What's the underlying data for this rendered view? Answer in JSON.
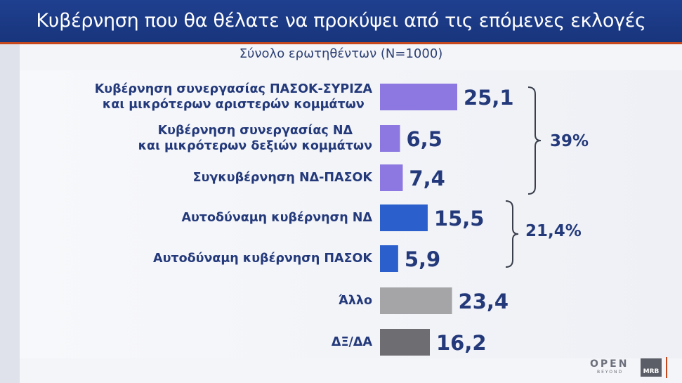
{
  "header": {
    "title": "Κυβέρνηση που θα θέλατε να προκύψει από τις επόμενες εκλογές",
    "subtitle": "Σύνολο ερωτηθέντων (N=1000)"
  },
  "chart_data": {
    "type": "bar",
    "orientation": "horizontal",
    "categories": [
      "Κυβέρνηση συνεργασίας ΠΑΣΟΚ-ΣΥΡΙΖΑ\nκαι μικρότερων αριστερών κομμάτων",
      "Κυβέρνηση συνεργασίας ΝΔ\nκαι μικρότερων δεξιών κομμάτων",
      "Συγκυβέρνηση ΝΔ-ΠΑΣΟΚ",
      "Αυτοδύναμη κυβέρνηση ΝΔ",
      "Αυτοδύναμη κυβέρνηση ΠΑΣΟΚ",
      "Άλλο",
      "ΔΞ/ΔΑ"
    ],
    "values": [
      25.1,
      6.5,
      7.4,
      15.5,
      5.9,
      23.4,
      16.2
    ],
    "value_labels": [
      "25,1",
      "6,5",
      "7,4",
      "15,5",
      "5,9",
      "23,4",
      "16,2"
    ],
    "bar_colors": [
      "#8c78e0",
      "#8c78e0",
      "#8c78e0",
      "#2a5fcc",
      "#2a5fcc",
      "#a5a5a8",
      "#6e6e72"
    ],
    "xlim": [
      0,
      25.1
    ],
    "grid": false,
    "groups": [
      {
        "label": "39%",
        "from": 0,
        "to": 2
      },
      {
        "label": "21,4%",
        "from": 3,
        "to": 4
      }
    ]
  },
  "colors": {
    "title_bar": "#1f3f8f",
    "accent": "#c8481e",
    "text": "#23397a"
  },
  "logos": {
    "open": "OPEN",
    "open_sub": "BEYOND",
    "mrb": "MRB"
  }
}
